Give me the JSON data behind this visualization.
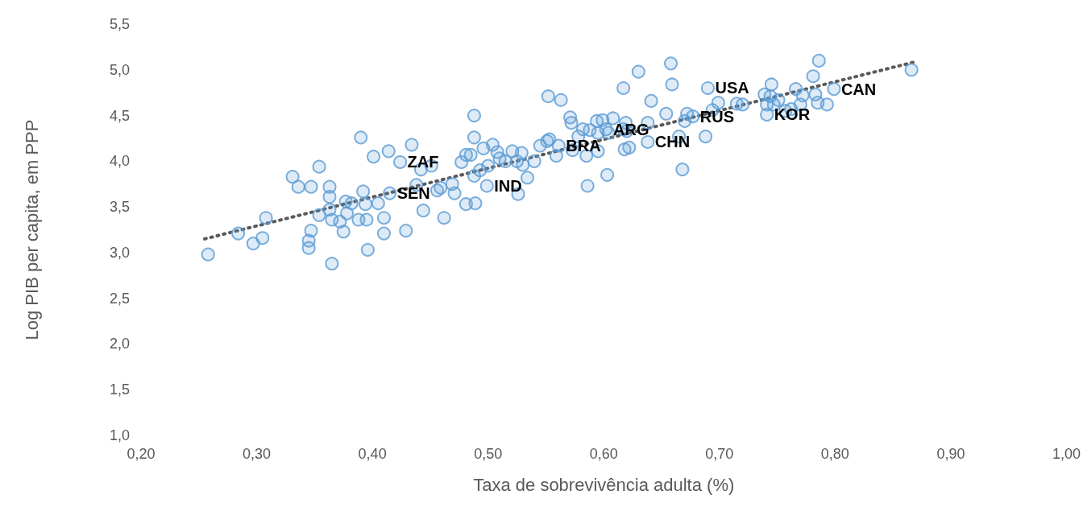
{
  "chart_data": {
    "type": "scatter",
    "xlabel": "Taxa de sobrevivência adulta (%)",
    "ylabel": "Log PIB per capita, em PPP",
    "marker": "circle",
    "xlim": [
      0.2,
      1.0
    ],
    "ylim": [
      1.0,
      5.5
    ],
    "xticks": [
      {
        "value": 0.2,
        "label": "0,20"
      },
      {
        "value": 0.3,
        "label": "0,30"
      },
      {
        "value": 0.4,
        "label": "0,40"
      },
      {
        "value": 0.5,
        "label": "0,50"
      },
      {
        "value": 0.6,
        "label": "0,60"
      },
      {
        "value": 0.7,
        "label": "0,70"
      },
      {
        "value": 0.8,
        "label": "0,80"
      },
      {
        "value": 0.9,
        "label": "0,90"
      },
      {
        "value": 1.0,
        "label": "1,00"
      }
    ],
    "yticks": [
      {
        "value": 1.0,
        "label": "1,0"
      },
      {
        "value": 1.5,
        "label": "1,5"
      },
      {
        "value": 2.0,
        "label": "2,0"
      },
      {
        "value": 2.5,
        "label": "2,5"
      },
      {
        "value": 3.0,
        "label": "3,0"
      },
      {
        "value": 3.5,
        "label": "3,5"
      },
      {
        "value": 4.0,
        "label": "4,0"
      },
      {
        "value": 4.5,
        "label": "4,5"
      },
      {
        "value": 5.0,
        "label": "5,0"
      },
      {
        "value": 5.5,
        "label": "5,5"
      }
    ],
    "series": [
      {
        "color": "#5b9bd5",
        "x": [
          0.258,
          0.284,
          0.297,
          0.305,
          0.308,
          0.331,
          0.336,
          0.347,
          0.354,
          0.354,
          0.345,
          0.345,
          0.347,
          0.363,
          0.363,
          0.363,
          0.365,
          0.365,
          0.372,
          0.375,
          0.377,
          0.378,
          0.382,
          0.388,
          0.39,
          0.392,
          0.394,
          0.395,
          0.396,
          0.401,
          0.405,
          0.41,
          0.41,
          0.414,
          0.415,
          0.424,
          0.429,
          0.434,
          0.438,
          0.442,
          0.444,
          0.451,
          0.456,
          0.459,
          0.462,
          0.469,
          0.471,
          0.477,
          0.481,
          0.481,
          0.485,
          0.488,
          0.488,
          0.489,
          0.488,
          0.493,
          0.496,
          0.499,
          0.5,
          0.504,
          0.508,
          0.51,
          0.515,
          0.521,
          0.525,
          0.526,
          0.529,
          0.53,
          0.534,
          0.54,
          0.545,
          0.551,
          0.553,
          0.552,
          0.559,
          0.563,
          0.561,
          0.571,
          0.572,
          0.573,
          0.578,
          0.582,
          0.588,
          0.585,
          0.586,
          0.594,
          0.595,
          0.595,
          0.599,
          0.602,
          0.604,
          0.603,
          0.608,
          0.617,
          0.617,
          0.618,
          0.619,
          0.62,
          0.622,
          0.63,
          0.638,
          0.638,
          0.641,
          0.654,
          0.659,
          0.658,
          0.665,
          0.668,
          0.67,
          0.672,
          0.677,
          0.688,
          0.69,
          0.694,
          0.699,
          0.715,
          0.72,
          0.739,
          0.741,
          0.741,
          0.744,
          0.745,
          0.747,
          0.751,
          0.757,
          0.762,
          0.766,
          0.77,
          0.772,
          0.781,
          0.783,
          0.786,
          0.785,
          0.793,
          0.799,
          0.866
        ],
        "values": [
          2.98,
          3.21,
          3.1,
          3.16,
          3.38,
          3.83,
          3.72,
          3.72,
          3.94,
          3.41,
          3.05,
          3.13,
          3.24,
          3.72,
          3.61,
          3.47,
          3.36,
          2.88,
          3.34,
          3.23,
          3.56,
          3.43,
          3.54,
          3.36,
          4.26,
          3.67,
          3.53,
          3.36,
          3.03,
          4.05,
          3.54,
          3.38,
          3.21,
          4.11,
          3.65,
          3.99,
          3.24,
          4.18,
          3.74,
          3.91,
          3.46,
          3.95,
          3.68,
          3.71,
          3.38,
          3.75,
          3.65,
          3.99,
          3.53,
          4.07,
          4.07,
          4.5,
          4.26,
          3.54,
          3.84,
          3.9,
          4.14,
          3.73,
          3.95,
          4.18,
          4.1,
          4.03,
          4.0,
          4.11,
          4.0,
          3.64,
          4.09,
          3.96,
          3.82,
          4.0,
          4.17,
          4.22,
          4.24,
          4.71,
          4.06,
          4.67,
          4.17,
          4.48,
          4.42,
          4.12,
          4.27,
          4.35,
          4.34,
          4.06,
          3.73,
          4.44,
          4.31,
          4.11,
          4.45,
          4.35,
          4.31,
          3.85,
          4.47,
          4.8,
          4.35,
          4.13,
          4.42,
          4.33,
          4.15,
          4.98,
          4.42,
          4.21,
          4.66,
          4.52,
          4.84,
          5.07,
          4.27,
          3.91,
          4.44,
          4.52,
          4.49,
          4.27,
          4.8,
          4.56,
          4.64,
          4.63,
          4.62,
          4.73,
          4.62,
          4.51,
          4.71,
          4.84,
          4.62,
          4.67,
          4.55,
          4.57,
          4.79,
          4.62,
          4.72,
          4.93,
          4.73,
          5.1,
          4.64,
          4.62,
          4.79,
          5.0
        ]
      },
      {
        "type": "line",
        "color": "#595959",
        "line_style": "dotted",
        "marker": "none",
        "x": [
          0.255,
          0.87
        ],
        "values": [
          3.15,
          5.09
        ]
      }
    ],
    "annotations": [
      {
        "text": "ZAF",
        "x": 0.424,
        "y": 3.99
      },
      {
        "text": "SEN",
        "x": 0.415,
        "y": 3.65
      },
      {
        "text": "IND",
        "x": 0.499,
        "y": 3.73
      },
      {
        "text": "BRA",
        "x": 0.561,
        "y": 4.17
      },
      {
        "text": "ARG",
        "x": 0.602,
        "y": 4.35
      },
      {
        "text": "CHN",
        "x": 0.638,
        "y": 4.21
      },
      {
        "text": "RUS",
        "x": 0.677,
        "y": 4.49
      },
      {
        "text": "USA",
        "x": 0.69,
        "y": 4.8
      },
      {
        "text": "KOR",
        "x": 0.741,
        "y": 4.51
      },
      {
        "text": "CAN",
        "x": 0.799,
        "y": 4.79
      }
    ]
  }
}
